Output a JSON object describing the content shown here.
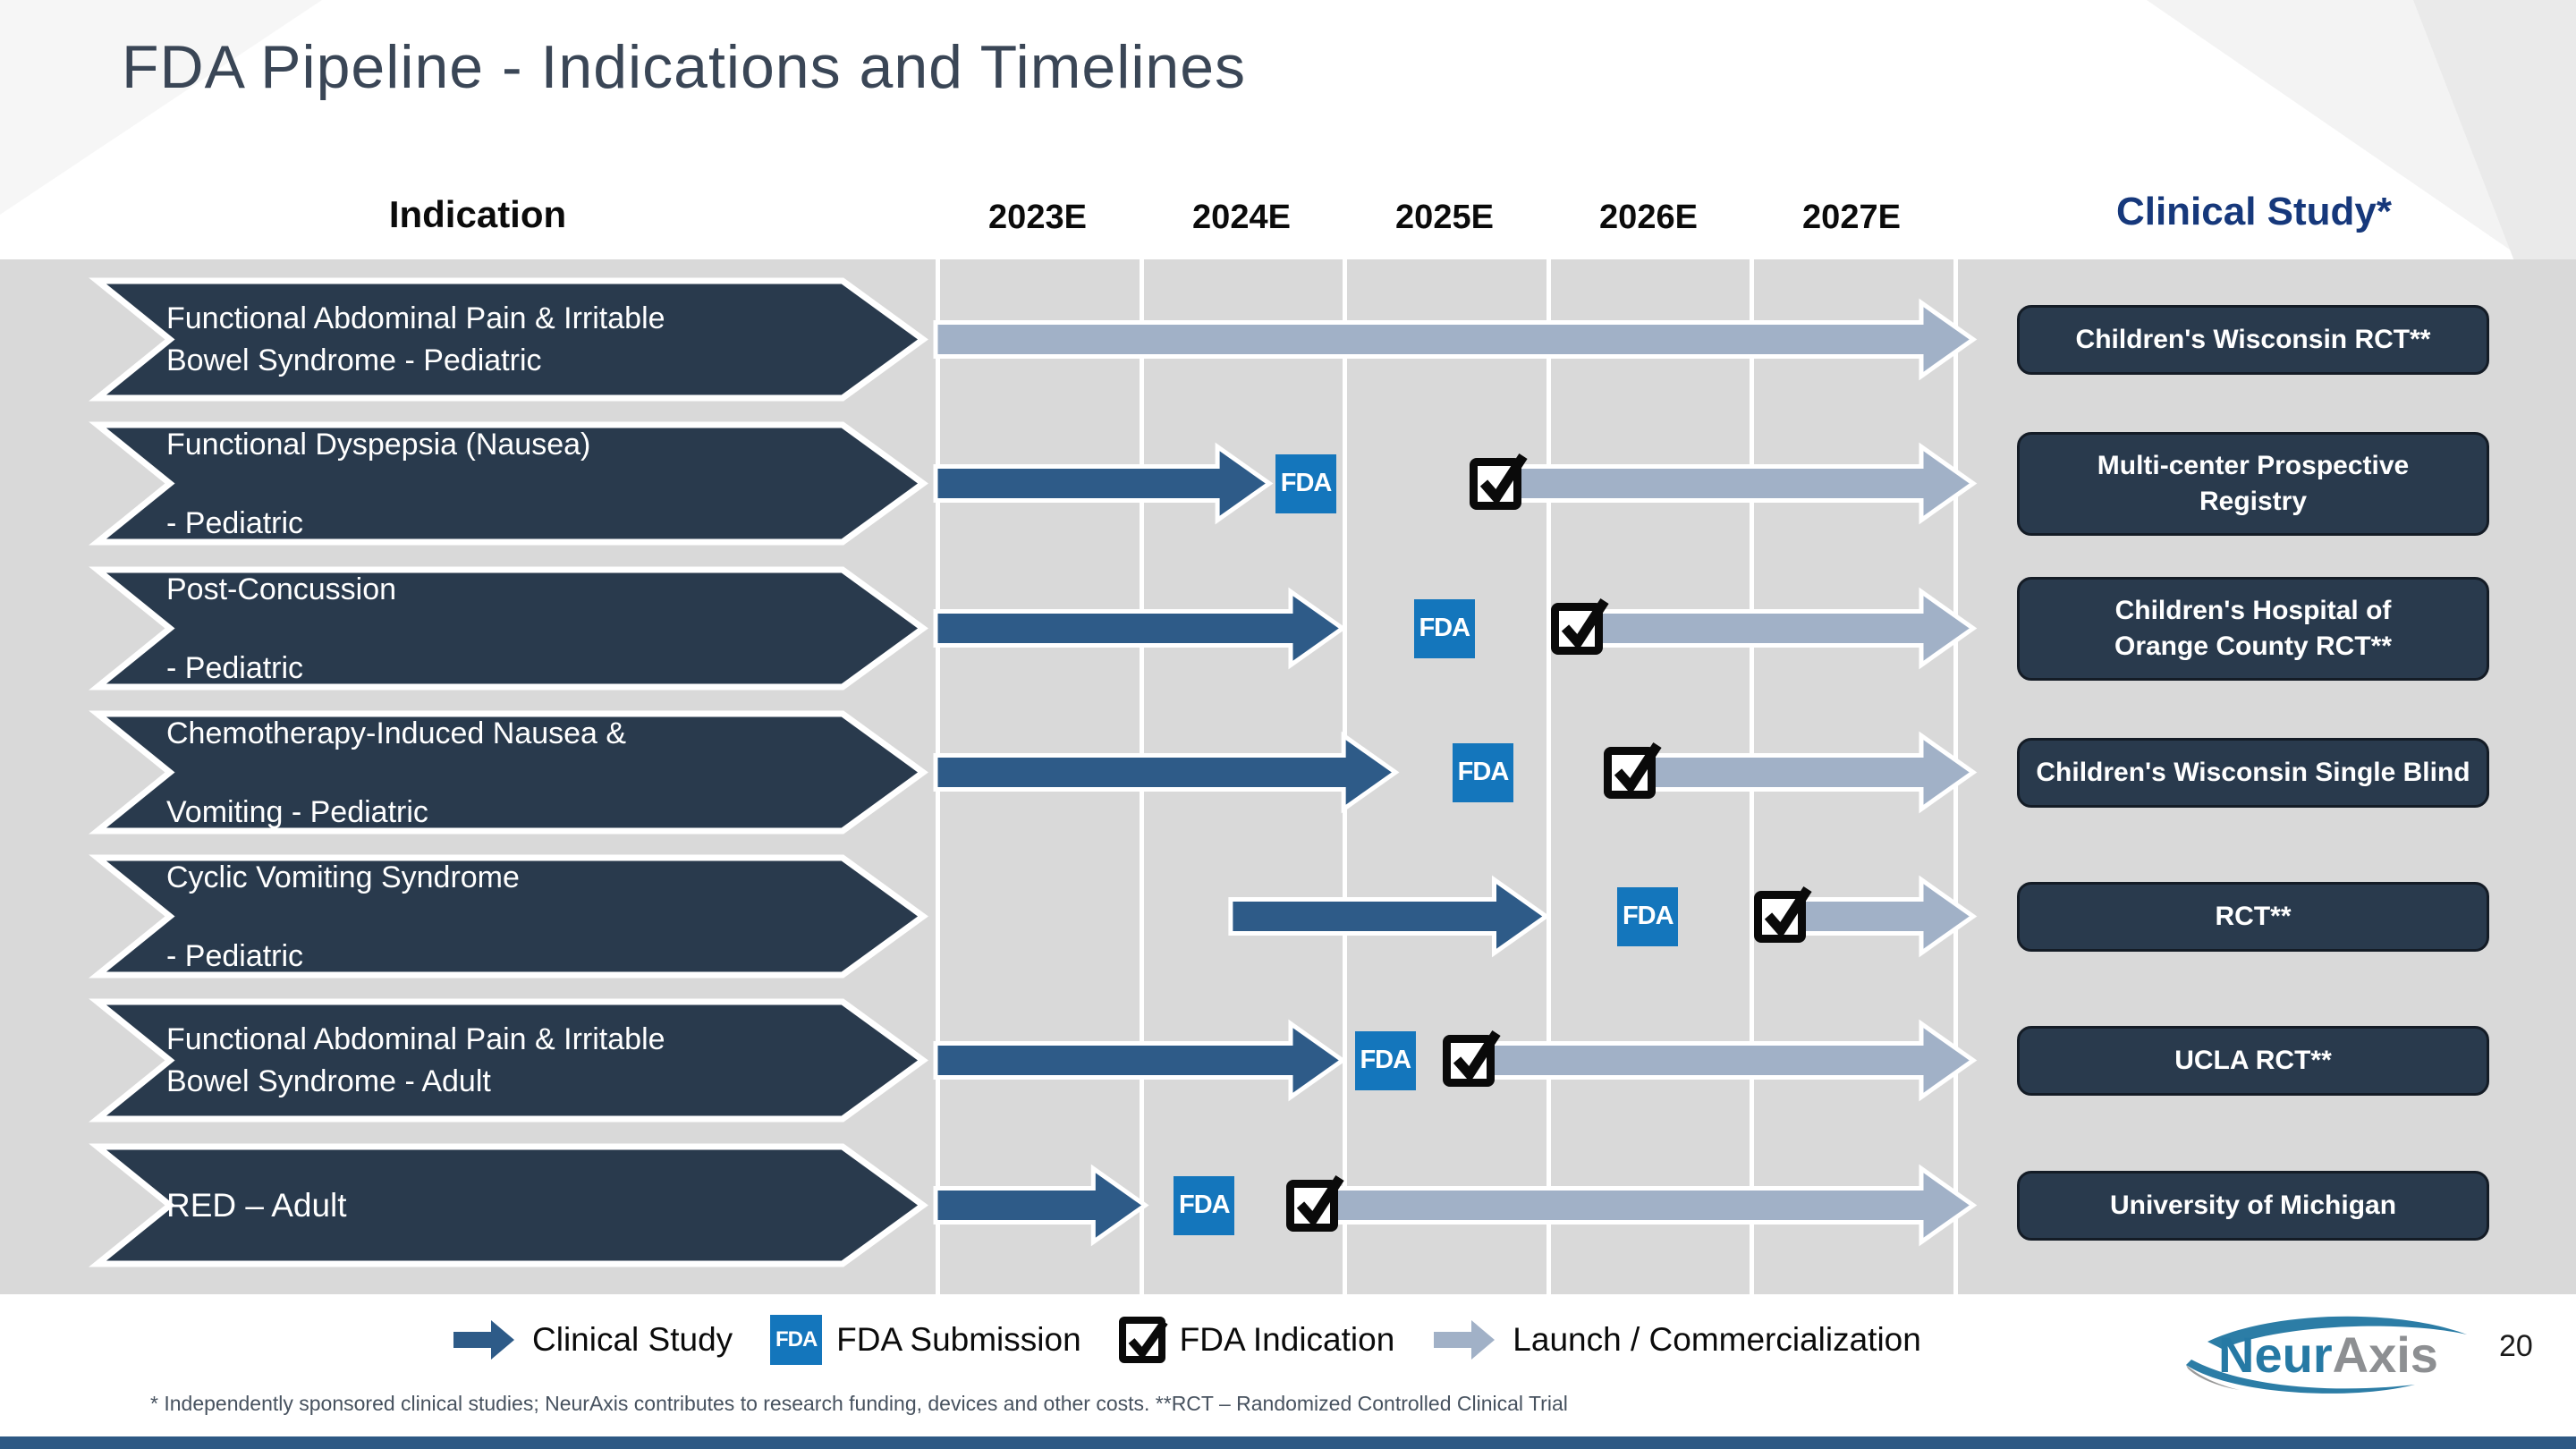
{
  "slide": {
    "title": "FDA Pipeline - Indications and Timelines",
    "page_number": "20",
    "footnote": "* Independently sponsored clinical studies; NeurAxis contributes to research funding, devices and other costs.  **RCT – Randomized Controlled Clinical Trial",
    "logo": {
      "part1": "Neur",
      "part2": "Axis"
    }
  },
  "header": {
    "indication_label": "Indication",
    "years": [
      "2023E",
      "2024E",
      "2025E",
      "2026E",
      "2027E"
    ],
    "clinical_study_label": "Clinical Study*"
  },
  "icons": {
    "fda_text": "FDA"
  },
  "legend": [
    {
      "icon": "clinical-study-arrow-icon",
      "label": "Clinical Study"
    },
    {
      "icon": "fda-submission-icon",
      "label": "FDA Submission"
    },
    {
      "icon": "fda-indication-checkbox-icon",
      "label": "FDA Indication"
    },
    {
      "icon": "launch-arrow-icon",
      "label": "Launch / Commercialization"
    }
  ],
  "colors": {
    "navy": "#293a4d",
    "dark_arrow": "#2e5b88",
    "light_arrow": "#a1b1c7",
    "fda_blue": "#1476bc",
    "header_blue": "#16387b",
    "bottom_bar": "#2e5984",
    "panel_gray": "#d9d9d9"
  },
  "timeline": {
    "axis_years": [
      2023,
      2024,
      2025,
      2026,
      2027
    ],
    "rows": [
      {
        "indication_lines": [
          "Functional Abdominal Pain & Irritable",
          "Bowel Syndrome - Pediatric"
        ],
        "line_spacing": "tight",
        "study_lines": [
          "Children's Wisconsin RCT**"
        ],
        "clinical_study": null,
        "fda_submission": null,
        "fda_indication": null,
        "launch": {
          "start": 2023.0,
          "end": 2028.1
        }
      },
      {
        "indication_lines": [
          "Functional Dyspepsia (Nausea)",
          "- Pediatric"
        ],
        "line_spacing": "wide",
        "study_lines": [
          "Multi-center Prospective",
          "Registry"
        ],
        "clinical_study": {
          "start": 2023.0,
          "end": 2024.64
        },
        "fda_submission": 2024.82,
        "fda_indication": 2025.75,
        "launch": {
          "start": 2025.75,
          "end": 2028.1
        }
      },
      {
        "indication_lines": [
          "Post-Concussion",
          "- Pediatric"
        ],
        "line_spacing": "wide",
        "study_lines": [
          "Children's Hospital of",
          "Orange County RCT**"
        ],
        "clinical_study": {
          "start": 2023.0,
          "end": 2025.0
        },
        "fda_submission": 2025.5,
        "fda_indication": 2026.15,
        "launch": {
          "start": 2026.15,
          "end": 2028.1
        }
      },
      {
        "indication_lines": [
          "Chemotherapy-Induced Nausea &",
          "Vomiting - Pediatric"
        ],
        "line_spacing": "wide",
        "study_lines": [
          "Children's Wisconsin Single Blind"
        ],
        "clinical_study": {
          "start": 2023.0,
          "end": 2025.26
        },
        "fda_submission": 2025.69,
        "fda_indication": 2026.41,
        "launch": {
          "start": 2026.41,
          "end": 2028.1
        }
      },
      {
        "indication_lines": [
          "Cyclic Vomiting Syndrome",
          "- Pediatric"
        ],
        "line_spacing": "wide",
        "study_lines": [
          "RCT**"
        ],
        "clinical_study": {
          "start": 2024.45,
          "end": 2026.0
        },
        "fda_submission": 2026.5,
        "fda_indication": 2027.15,
        "launch": {
          "start": 2027.15,
          "end": 2028.1
        }
      },
      {
        "indication_lines": [
          "Functional Abdominal Pain & Irritable",
          "Bowel Syndrome - Adult"
        ],
        "line_spacing": "tight",
        "study_lines": [
          "UCLA RCT**"
        ],
        "clinical_study": {
          "start": 2023.0,
          "end": 2025.0
        },
        "fda_submission": 2025.21,
        "fda_indication": 2025.62,
        "launch": {
          "start": 2025.62,
          "end": 2028.1
        }
      },
      {
        "indication_lines": [
          "RED – Adult"
        ],
        "line_spacing": "single",
        "study_lines": [
          "University of Michigan"
        ],
        "clinical_study": {
          "start": 2023.0,
          "end": 2024.03
        },
        "fda_submission": 2024.32,
        "fda_indication": 2024.85,
        "launch": {
          "start": 2024.85,
          "end": 2028.1
        }
      }
    ]
  }
}
